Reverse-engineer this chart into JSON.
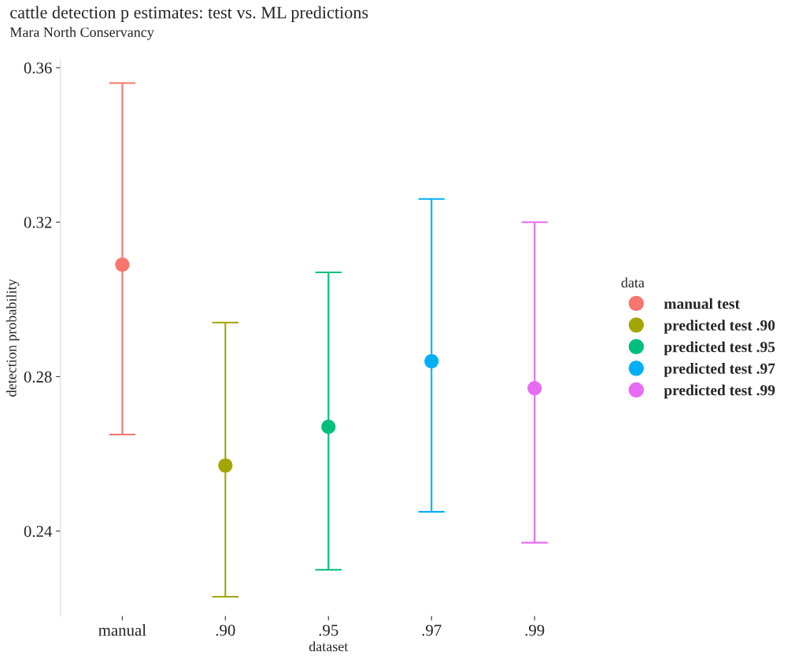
{
  "chart_data": {
    "type": "scatter",
    "title": "cattle detection p estimates: test vs. ML predictions",
    "subtitle": "Mara North Conservancy",
    "xlabel": "dataset",
    "ylabel": "detection probability",
    "legend_title": "data",
    "legend": "right",
    "grid": false,
    "marker": "circle",
    "categories": [
      "manual",
      ".90",
      ".95",
      ".97",
      ".99"
    ],
    "ylim": [
      0.218,
      0.362
    ],
    "yticks": [
      0.24,
      0.28,
      0.32,
      0.36
    ],
    "series": [
      {
        "name": "manual test",
        "color": "#F8766D",
        "values": [
          0.309,
          null,
          null,
          null,
          null
        ],
        "errors": [
          [
            0.265,
            0.356
          ],
          null,
          null,
          null,
          null
        ]
      },
      {
        "name": "predicted test .90",
        "color": "#A3A500",
        "values": [
          null,
          0.257,
          null,
          null,
          null
        ],
        "errors": [
          null,
          [
            0.223,
            0.294
          ],
          null,
          null,
          null
        ]
      },
      {
        "name": "predicted test .95",
        "color": "#00BF7D",
        "values": [
          null,
          null,
          0.267,
          null,
          null
        ],
        "errors": [
          null,
          null,
          [
            0.23,
            0.307
          ],
          null,
          null
        ]
      },
      {
        "name": "predicted test .97",
        "color": "#00B0F6",
        "values": [
          null,
          null,
          null,
          0.284,
          null
        ],
        "errors": [
          null,
          null,
          null,
          [
            0.245,
            0.326
          ],
          null
        ]
      },
      {
        "name": "predicted test .99",
        "color": "#E76BF3",
        "values": [
          null,
          null,
          null,
          null,
          0.277
        ],
        "errors": [
          null,
          null,
          null,
          null,
          [
            0.237,
            0.32
          ]
        ]
      }
    ]
  }
}
